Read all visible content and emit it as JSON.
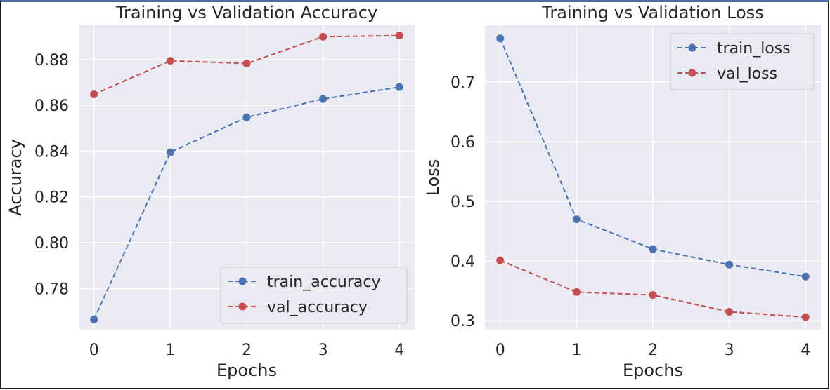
{
  "chart_data": [
    {
      "type": "line",
      "title": "Training vs Validation Accuracy",
      "xlabel": "Epochs",
      "ylabel": "Accuracy",
      "x": [
        0,
        1,
        2,
        3,
        4
      ],
      "xticks": [
        "0",
        "1",
        "2",
        "3",
        "4"
      ],
      "yticks": [
        "0.78",
        "0.80",
        "0.82",
        "0.84",
        "0.86",
        "0.88"
      ],
      "ytick_values": [
        0.78,
        0.8,
        0.82,
        0.84,
        0.86,
        0.88
      ],
      "ylim": [
        0.762,
        0.895
      ],
      "xlim": [
        -0.2,
        4.2
      ],
      "grid": true,
      "legend_position": "lower-right",
      "series": [
        {
          "name": "train_accuracy",
          "color": "#4c72b0",
          "values": [
            0.7665,
            0.8395,
            0.8548,
            0.8628,
            0.868
          ]
        },
        {
          "name": "val_accuracy",
          "color": "#c44e52",
          "values": [
            0.8648,
            0.8795,
            0.8783,
            0.89,
            0.8905
          ]
        }
      ]
    },
    {
      "type": "line",
      "title": "Training vs Validation Loss",
      "xlabel": "Epochs",
      "ylabel": "Loss",
      "x": [
        0,
        1,
        2,
        3,
        4
      ],
      "xticks": [
        "0",
        "1",
        "2",
        "3",
        "4"
      ],
      "yticks": [
        "0.3",
        "0.4",
        "0.5",
        "0.6",
        "0.7"
      ],
      "ytick_values": [
        0.3,
        0.4,
        0.5,
        0.6,
        0.7
      ],
      "ylim": [
        0.285,
        0.795
      ],
      "xlim": [
        -0.2,
        4.2
      ],
      "grid": true,
      "legend_position": "upper-right",
      "series": [
        {
          "name": "train_loss",
          "color": "#4c72b0",
          "values": [
            0.773,
            0.47,
            0.42,
            0.394,
            0.374
          ]
        },
        {
          "name": "val_loss",
          "color": "#c44e52",
          "values": [
            0.401,
            0.348,
            0.343,
            0.315,
            0.306
          ]
        }
      ]
    }
  ]
}
